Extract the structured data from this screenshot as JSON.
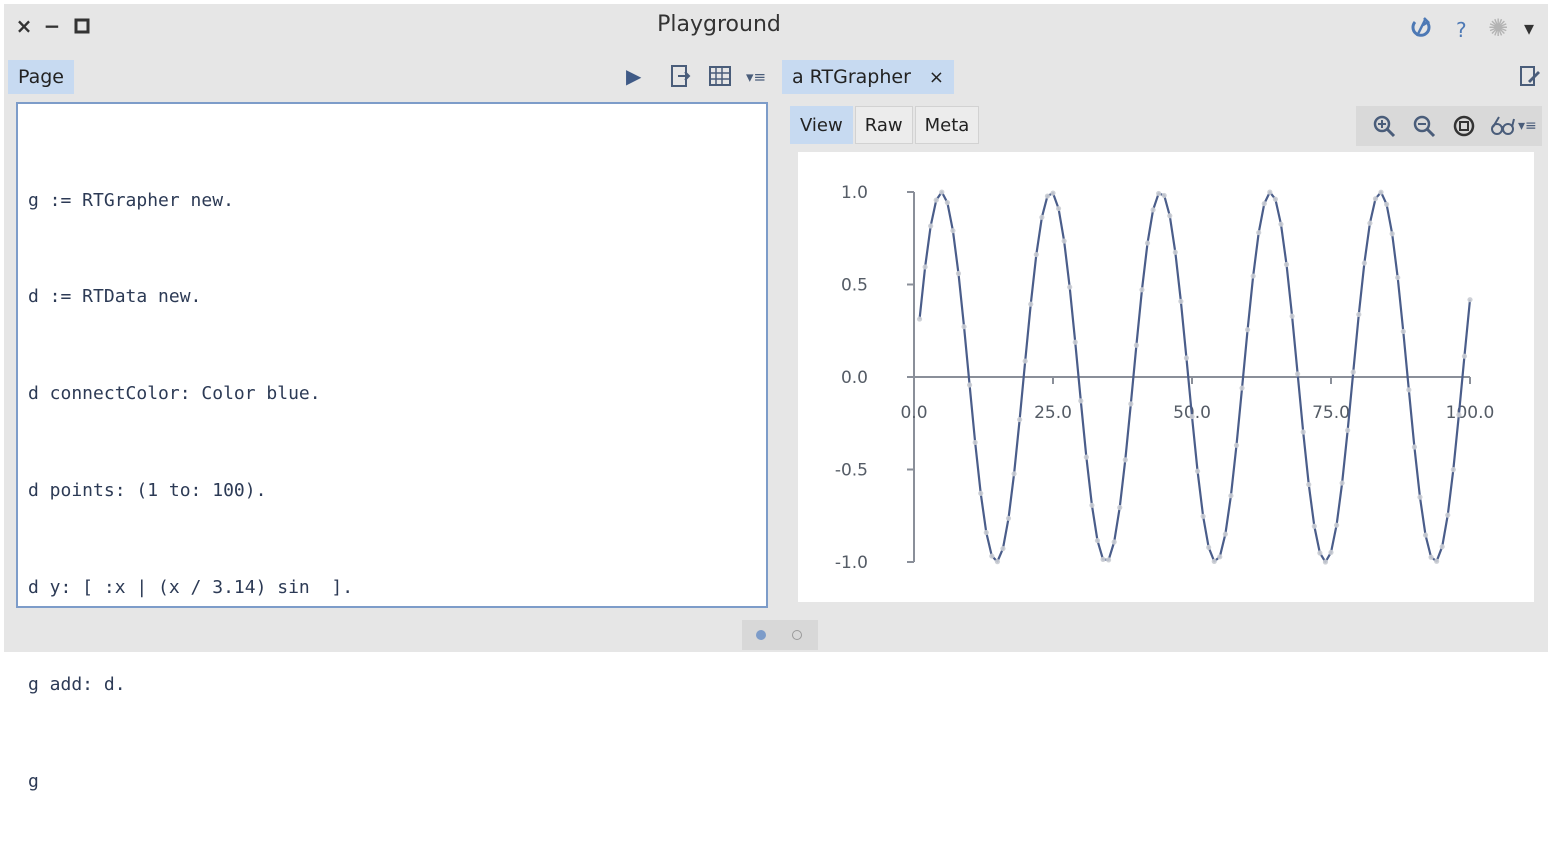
{
  "window": {
    "title": "Playground",
    "close_symbol": "×",
    "minimize_symbol": "−",
    "maximize_symbol": "☐",
    "help_symbol": "?",
    "settings_symbol": "✺",
    "menu_symbol": "▾",
    "sync_symbol": "↺"
  },
  "left_pane": {
    "tab_label": "Page",
    "toolbar": {
      "run_symbol": "▶",
      "export_symbol": "⇥",
      "bindings_symbol": "▥",
      "menu_symbol": "▾≡"
    },
    "code_lines": [
      "g := RTGrapher new.",
      "d := RTData new.",
      "d connectColor: Color blue.",
      "d points: (1 to: 100).",
      "d y: [ :x | (x / 3.14) sin  ].",
      "g add: d.",
      "g"
    ]
  },
  "right_pane": {
    "tab_label": "a RTGrapher",
    "tab_close_symbol": "×",
    "edit_symbol": "✎",
    "sub_tabs": [
      "View",
      "Raw",
      "Meta"
    ],
    "active_sub_tab": "View",
    "zoom_toolbar": {
      "zoom_in_symbol": "⊕",
      "zoom_out_symbol": "⊖",
      "fit_symbol": "◎",
      "inspect_symbol": "∞",
      "menu_symbol": "▾≡"
    }
  },
  "pager": {
    "pages": 2,
    "current": 1
  },
  "chart_data": {
    "type": "line",
    "series_color": "#4a5d8a",
    "formula": "sin(x / 3.14)",
    "x_range": [
      1,
      100
    ],
    "xlim": [
      0,
      100
    ],
    "ylim": [
      -1.0,
      1.0
    ],
    "x_ticks": [
      "0.0",
      "25.0",
      "50.0",
      "75.0",
      "100.0"
    ],
    "x_tick_values": [
      0,
      25,
      50,
      75,
      100
    ],
    "y_ticks": [
      "1.0",
      "0.5",
      "0.0",
      "-0.5",
      "-1.0"
    ],
    "y_tick_values": [
      1.0,
      0.5,
      0.0,
      -0.5,
      -1.0
    ],
    "grid": false,
    "legend": "none"
  },
  "colors": {
    "accent": "#4d79b5",
    "tab_active": "#c7daf1",
    "window_bg": "#e6e6e6",
    "code_text": "#2c3a55"
  }
}
